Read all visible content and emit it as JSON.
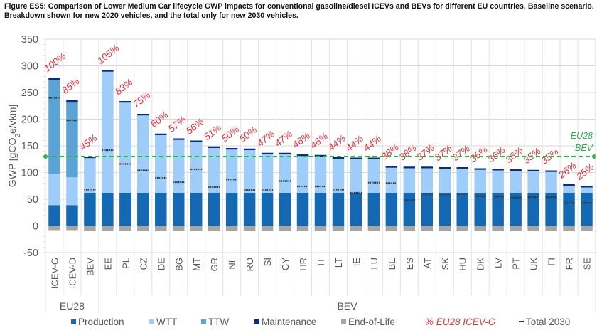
{
  "title_line1": "Figure ES5: Comparison of Lower Medium Car lifecycle GWP impacts for conventional gasoline/diesel ICEVs and BEVs for different EU countries, Baseline scenario.",
  "title_line2": "Breakdown shown for new 2020 vehicles, and the total only for new 2030 vehicles.",
  "colors": {
    "production": "#1369b4",
    "wtt": "#9dcdf8",
    "ttw": "#5aa3d6",
    "maintenance": "#0c2d78",
    "eol": "#a5a5a5",
    "pct": "#e8313d",
    "eu28_line": "#2bb54f",
    "total2030": "#333333"
  },
  "legend": {
    "production": "Production",
    "wtt": "WTT",
    "ttw": "TTW",
    "maintenance": "Maintenance",
    "eol": "End-of-Life",
    "pct": "% EU28 ICEV-G",
    "total2030": "Total 2030"
  },
  "eu28_bev_label_1": "EU28",
  "eu28_bev_label_2": "BEV",
  "chart_data": {
    "type": "bar",
    "stacked": true,
    "title": "Figure ES5: Comparison of Lower Medium Car lifecycle GWP impacts for conventional gasoline/diesel ICEVs and BEVs for different EU countries, Baseline scenario. Breakdown shown for new 2020 vehicles, and the total only for new 2030 vehicles.",
    "xlabel": "",
    "ylabel": "GWP [gCO2e/vkm]",
    "ylim": [
      -50,
      350
    ],
    "yticks": [
      -50,
      0,
      50,
      100,
      150,
      200,
      250,
      300,
      350
    ],
    "grid": true,
    "legend_position": "bottom",
    "groups": [
      {
        "label": "EU28",
        "count": 3
      },
      {
        "label": "BEV",
        "count": 28
      }
    ],
    "categories": [
      "ICEV-G",
      "ICEV-D",
      "BEV",
      "EE",
      "PL",
      "CZ",
      "DE",
      "BG",
      "MT",
      "GR",
      "NL",
      "RO",
      "SI",
      "CY",
      "HR",
      "IT",
      "LT",
      "IE",
      "LU",
      "BE",
      "ES",
      "AT",
      "SK",
      "HU",
      "DK",
      "LV",
      "PT",
      "UK",
      "FI",
      "FR",
      "SE"
    ],
    "series": [
      {
        "name": "Production",
        "key": "production",
        "values": [
          39,
          39,
          62,
          62,
          62,
          62,
          62,
          62,
          62,
          62,
          62,
          62,
          62,
          62,
          62,
          62,
          62,
          62,
          62,
          62,
          62,
          62,
          62,
          62,
          62,
          62,
          62,
          62,
          62,
          62,
          62
        ]
      },
      {
        "name": "WTT",
        "key": "wtt",
        "values": [
          58,
          52,
          65,
          227,
          169,
          145,
          108,
          99,
          95,
          84,
          81,
          80,
          72,
          72,
          69,
          68,
          64,
          63,
          63,
          47,
          46,
          46,
          45,
          45,
          43,
          42,
          41,
          40,
          39,
          13,
          10
        ]
      },
      {
        "name": "TTW",
        "key": "ttw",
        "values": [
          176,
          140,
          0,
          0,
          0,
          0,
          0,
          0,
          0,
          0,
          0,
          0,
          0,
          0,
          0,
          0,
          0,
          0,
          0,
          0,
          0,
          0,
          0,
          0,
          0,
          0,
          0,
          0,
          0,
          0,
          0
        ]
      },
      {
        "name": "Maintenance",
        "key": "maintenance",
        "values": [
          4,
          5,
          3,
          3,
          3,
          3,
          3,
          3,
          3,
          3,
          3,
          3,
          3,
          3,
          3,
          3,
          3,
          3,
          3,
          3,
          3,
          3,
          3,
          3,
          3,
          3,
          3,
          3,
          3,
          3,
          3
        ]
      },
      {
        "name": "End-of-Life",
        "key": "eol",
        "values": [
          -8,
          -8,
          -10,
          -10,
          -10,
          -10,
          -10,
          -10,
          -10,
          -10,
          -10,
          -10,
          -10,
          -10,
          -10,
          -10,
          -10,
          -10,
          -10,
          -10,
          -10,
          -10,
          -10,
          -10,
          -10,
          -10,
          -10,
          -10,
          -10,
          -10,
          -10
        ]
      }
    ],
    "total_2030": [
      240,
      198,
      68,
      142,
      116,
      104,
      90,
      82,
      106,
      73,
      87,
      67,
      67,
      84,
      74,
      74,
      68,
      62,
      81,
      80,
      48,
      60,
      59,
      60,
      56,
      55,
      53,
      54,
      54,
      43,
      43
    ],
    "pct_eu28_icev_g": [
      "100%",
      "85%",
      "45%",
      "105%",
      "83%",
      "75%",
      "60%",
      "57%",
      "56%",
      "51%",
      "50%",
      "50%",
      "47%",
      "47%",
      "46%",
      "46%",
      "44%",
      "44%",
      "44%",
      "38%",
      "38%",
      "37%",
      "37%",
      "37%",
      "36%",
      "36%",
      "36%",
      "35%",
      "35%",
      "26%",
      "25%"
    ],
    "reference_line": {
      "label": "EU28 BEV",
      "value": 130
    }
  }
}
